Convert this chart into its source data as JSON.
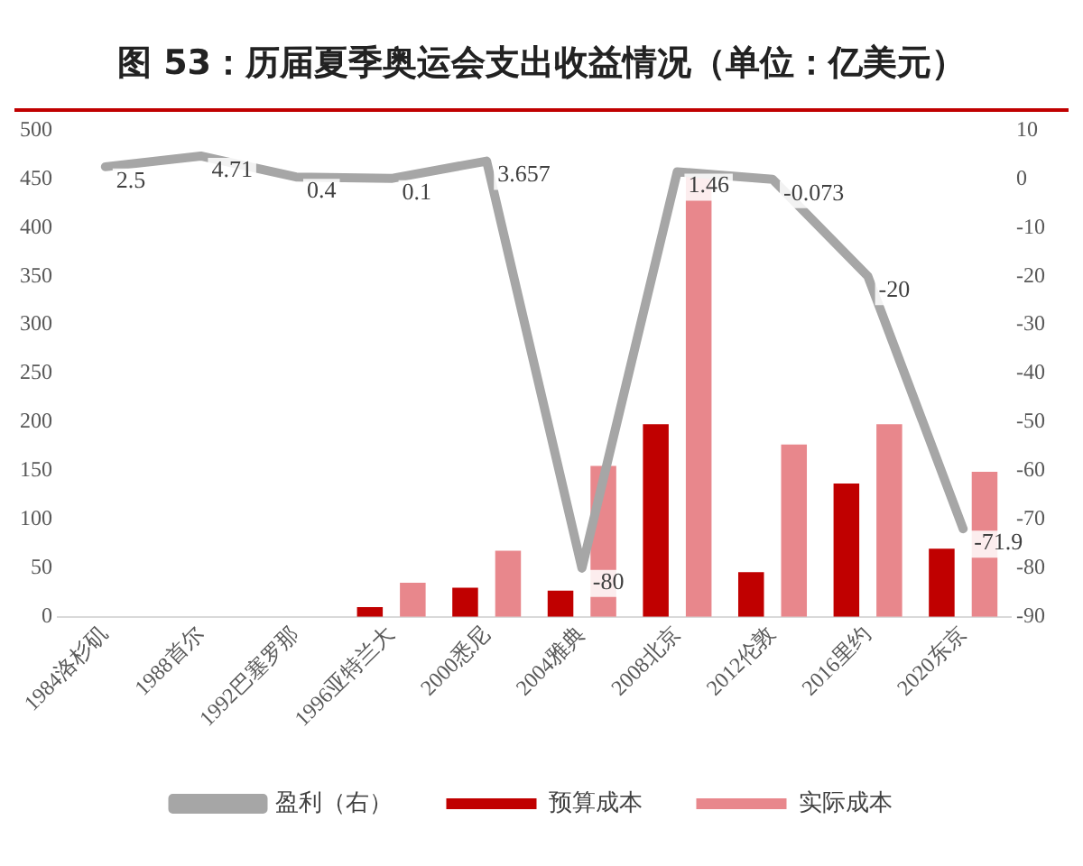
{
  "chart_data": {
    "type": "bar",
    "title": "图 53：历届夏季奥运会支出收益情况（单位：亿美元）",
    "categories": [
      "1984洛杉矶",
      "1988首尔",
      "1992巴塞罗那",
      "1996亚特兰大",
      "2000悉尼",
      "2004雅典",
      "2008北京",
      "2012伦敦",
      "2016里约",
      "2020东京"
    ],
    "series": [
      {
        "name": "预算成本",
        "color": "#c00000",
        "values": [
          null,
          null,
          null,
          10,
          30,
          27,
          198,
          46,
          137,
          70
        ]
      },
      {
        "name": "实际成本",
        "color": "#e8878c",
        "values": [
          null,
          null,
          null,
          35,
          68,
          155,
          454,
          177,
          198,
          149
        ]
      },
      {
        "name": "盈利（右）",
        "type": "line",
        "axis": "y2",
        "color": "#a6a6a6",
        "values": [
          2.5,
          4.71,
          0.4,
          0.1,
          3.657,
          -80,
          1.46,
          -0.073,
          -20,
          -71.9
        ],
        "value_labels": [
          "2.5",
          "4.71",
          "0.4",
          "0.1",
          "3.657",
          "-80",
          "1.46",
          "-0.073",
          "-20",
          "-71.9"
        ]
      }
    ],
    "ylim": [
      0,
      500
    ],
    "yticks": [
      0,
      50,
      100,
      150,
      200,
      250,
      300,
      350,
      400,
      450,
      500
    ],
    "y2lim": [
      -90,
      10
    ],
    "y2ticks": [
      -90,
      -80,
      -70,
      -60,
      -50,
      -40,
      -30,
      -20,
      -10,
      0,
      10
    ],
    "grid": false,
    "legend": "bottom",
    "marker": "none"
  }
}
